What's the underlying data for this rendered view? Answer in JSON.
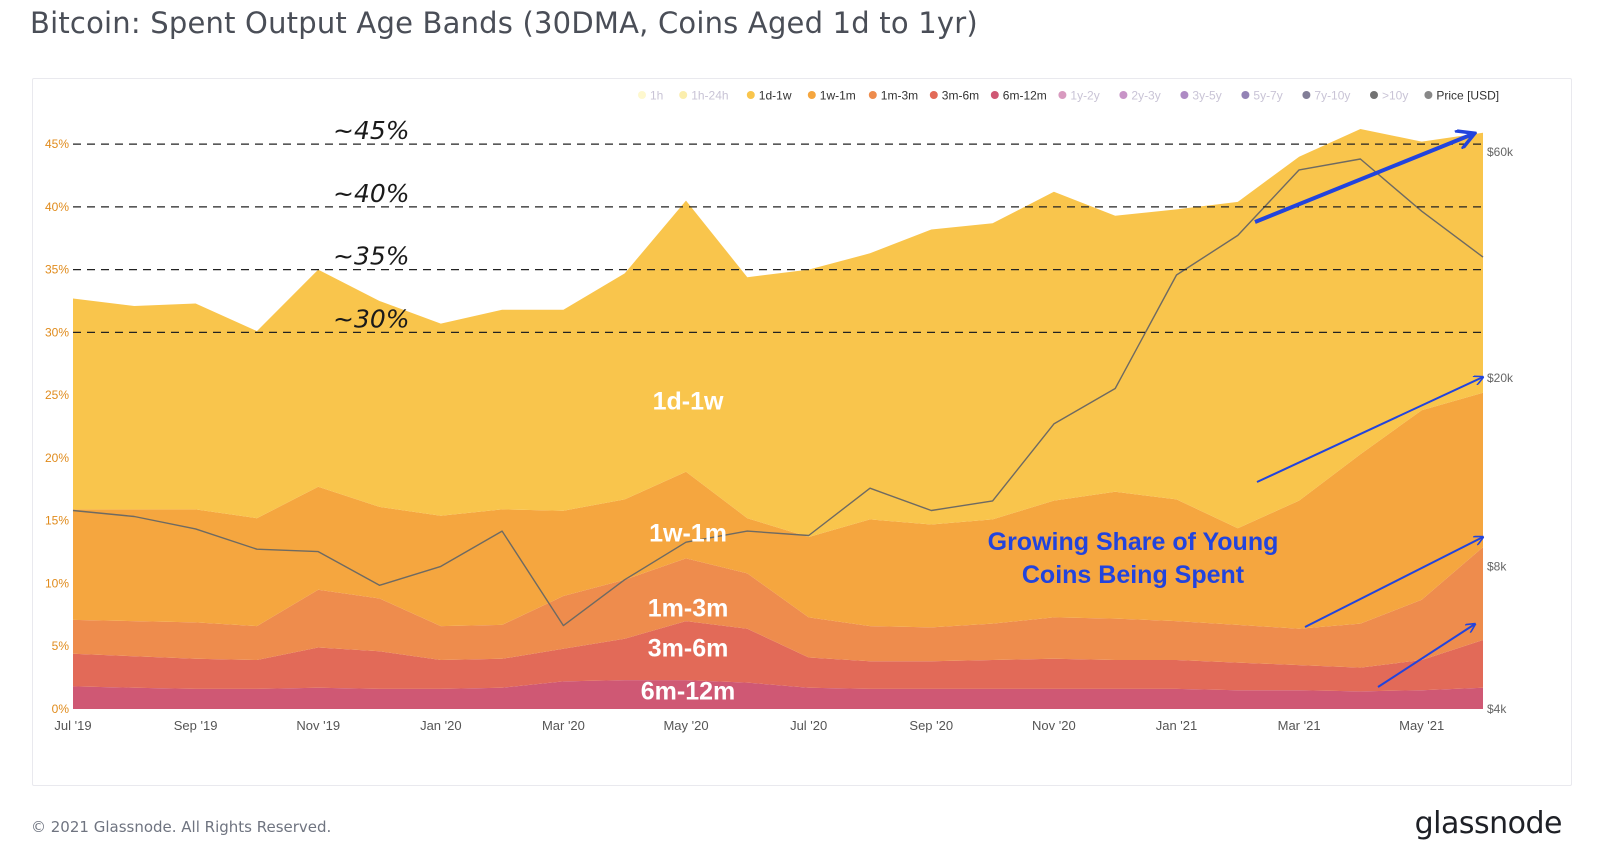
{
  "page": {
    "title": "Bitcoin: Spent Output Age Bands (30DMA, Coins Aged 1d to 1yr)",
    "copyright": "© 2021 Glassnode. All Rights Reserved.",
    "logo": "glassnode",
    "watermark": "glassnode"
  },
  "chart_data": {
    "type": "area",
    "stacked": true,
    "x": [
      "2019-07",
      "2019-08",
      "2019-09",
      "2019-10",
      "2019-11",
      "2019-12",
      "2020-01",
      "2020-02",
      "2020-03",
      "2020-04",
      "2020-05",
      "2020-06",
      "2020-07",
      "2020-08",
      "2020-09",
      "2020-10",
      "2020-11",
      "2020-12",
      "2021-01",
      "2021-02",
      "2021-03",
      "2021-04",
      "2021-05",
      "2021-06"
    ],
    "x_tick_labels": [
      "Jul '19",
      "Sep '19",
      "Nov '19",
      "Jan '20",
      "Mar '20",
      "May '20",
      "Jul '20",
      "Sep '20",
      "Nov '20",
      "Jan '21",
      "Mar '21",
      "May '21"
    ],
    "y_ticks": [
      "0%",
      "5%",
      "10%",
      "15%",
      "20%",
      "25%",
      "30%",
      "35%",
      "40%",
      "45%"
    ],
    "y_range": [
      0,
      47
    ],
    "y_right_ticks": [
      {
        "label": "$4k",
        "value": 4000
      },
      {
        "label": "$8k",
        "value": 8000
      },
      {
        "label": "$20k",
        "value": 20000
      },
      {
        "label": "$60k",
        "value": 60000
      }
    ],
    "y_right_scale": "log",
    "legend_position": "top-right",
    "legend": [
      {
        "name": "1h",
        "color": "#fdf3a6",
        "active": false
      },
      {
        "name": "1h-24h",
        "color": "#f7e06a",
        "active": false
      },
      {
        "name": "1d-1w",
        "color": "#f9c54c",
        "active": true
      },
      {
        "name": "1w-1m",
        "color": "#f5a63f",
        "active": true
      },
      {
        "name": "1m-3m",
        "color": "#ee8c4d",
        "active": true
      },
      {
        "name": "3m-6m",
        "color": "#e26a58",
        "active": true
      },
      {
        "name": "6m-12m",
        "color": "#cf5874",
        "active": true
      },
      {
        "name": "1y-2y",
        "color": "#b8478a",
        "active": false
      },
      {
        "name": "2y-3y",
        "color": "#9a3c99",
        "active": false
      },
      {
        "name": "3y-5y",
        "color": "#6c2c93",
        "active": false
      },
      {
        "name": "5y-7y",
        "color": "#3b1d78",
        "active": false
      },
      {
        "name": "7y-10y",
        "color": "#1c1442",
        "active": false
      },
      {
        "name": ">10y",
        "color": "#000000",
        "active": false
      },
      {
        "name": "Price [USD]",
        "color": "#888888",
        "active": true
      }
    ],
    "series": [
      {
        "name": "6m-12m",
        "color": "#cf5874",
        "values": [
          1.8,
          1.7,
          1.6,
          1.6,
          1.7,
          1.6,
          1.6,
          1.7,
          2.2,
          2.3,
          2.3,
          2.1,
          1.7,
          1.6,
          1.6,
          1.6,
          1.6,
          1.6,
          1.6,
          1.5,
          1.5,
          1.4,
          1.5,
          1.7
        ]
      },
      {
        "name": "3m-6m",
        "color": "#e26a58",
        "values": [
          2.6,
          2.5,
          2.4,
          2.3,
          3.2,
          3.0,
          2.3,
          2.3,
          2.6,
          3.3,
          4.7,
          4.3,
          2.4,
          2.2,
          2.2,
          2.3,
          2.4,
          2.3,
          2.3,
          2.2,
          2.0,
          1.9,
          2.4,
          3.8
        ]
      },
      {
        "name": "1m-3m",
        "color": "#ee8c4d",
        "values": [
          2.7,
          2.8,
          2.9,
          2.7,
          4.6,
          4.2,
          2.7,
          2.7,
          4.2,
          4.7,
          5.0,
          4.4,
          3.2,
          2.8,
          2.7,
          2.9,
          3.3,
          3.3,
          3.1,
          3.0,
          2.9,
          3.5,
          4.8,
          7.4
        ]
      },
      {
        "name": "1w-1m",
        "color": "#f5a63f",
        "values": [
          8.8,
          8.9,
          9.0,
          8.6,
          8.2,
          7.3,
          8.8,
          9.2,
          6.8,
          6.4,
          6.9,
          4.4,
          6.4,
          8.5,
          8.2,
          8.3,
          9.3,
          10.1,
          9.7,
          7.7,
          10.2,
          13.5,
          15.1,
          12.3
        ]
      },
      {
        "name": "1d-1w",
        "color": "#f9c54c",
        "values": [
          16.8,
          16.2,
          16.4,
          14.9,
          17.3,
          16.4,
          15.3,
          15.9,
          16.0,
          18.0,
          21.6,
          19.2,
          21.3,
          21.2,
          23.5,
          23.6,
          24.6,
          22.0,
          23.1,
          26.0,
          27.4,
          25.9,
          21.4,
          20.7
        ]
      }
    ],
    "price_series": {
      "name": "Price [USD]",
      "values": [
        10500,
        10200,
        9600,
        8700,
        8600,
        7300,
        8000,
        9500,
        6000,
        7500,
        9000,
        9500,
        9300,
        11700,
        10500,
        11000,
        16000,
        19000,
        33000,
        40000,
        55000,
        58000,
        45000,
        36000
      ]
    },
    "reference_lines": [
      {
        "label": "~30%",
        "value": 30
      },
      {
        "label": "~35%",
        "value": 35
      },
      {
        "label": "~40%",
        "value": 40
      },
      {
        "label": "~45%",
        "value": 45
      }
    ],
    "band_labels": [
      {
        "text": "1d-1w",
        "x_index": 10,
        "y": 24.5
      },
      {
        "text": "1w-1m",
        "x_index": 10,
        "y": 14
      },
      {
        "text": "1m-3m",
        "x_index": 10,
        "y": 8
      },
      {
        "text": "3m-6m",
        "x_index": 10,
        "y": 4.8
      },
      {
        "text": "6m-12m",
        "x_index": 10,
        "y": 1.4
      }
    ],
    "annotation": {
      "lines": [
        "Growing Share of Young",
        "Coins Being Spent"
      ],
      "color": "#2244dd"
    }
  }
}
